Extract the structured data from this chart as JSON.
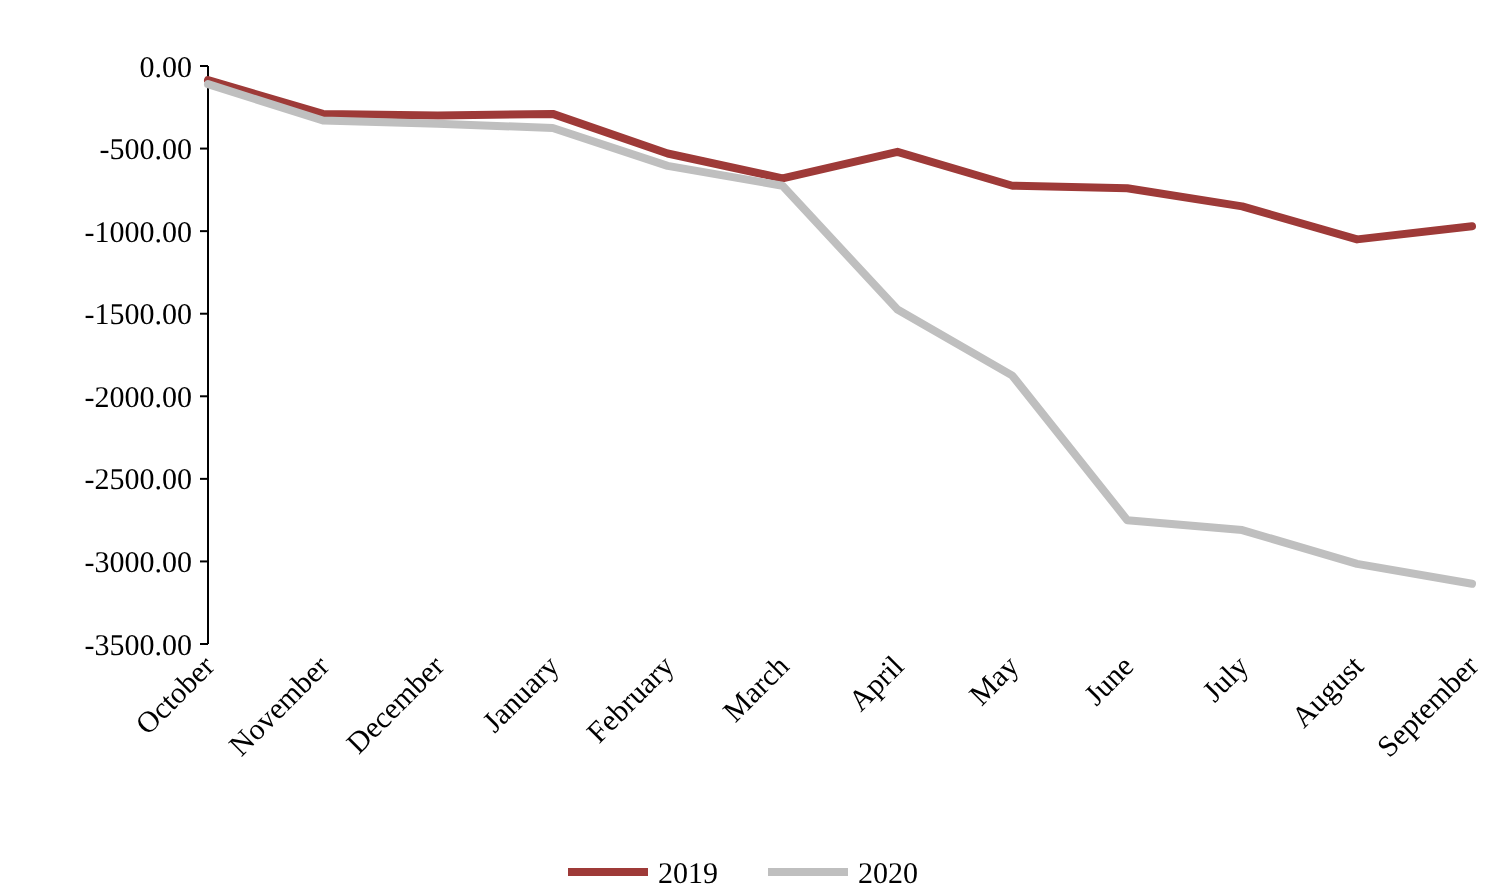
{
  "chart_data": {
    "type": "line",
    "categories": [
      "October",
      "November",
      "December",
      "January",
      "February",
      "March",
      "April",
      "May",
      "June",
      "July",
      "August",
      "September"
    ],
    "series": [
      {
        "name": "2019",
        "color": "#9e3a38",
        "values": [
          -85,
          -290,
          -300,
          -290,
          -530,
          -680,
          -520,
          -725,
          -740,
          -850,
          -1050,
          -970
        ]
      },
      {
        "name": "2020",
        "color": "#bfbfbf",
        "values": [
          -110,
          -330,
          -350,
          -375,
          -605,
          -725,
          -1475,
          -1875,
          -2750,
          -2810,
          -3015,
          -3135
        ]
      }
    ],
    "ylim": [
      -3500,
      0
    ],
    "yticks": [
      {
        "value": 0,
        "label": "0.00"
      },
      {
        "value": -500,
        "label": "-500.00"
      },
      {
        "value": -1000,
        "label": "-1000.00"
      },
      {
        "value": -1500,
        "label": "-1500.00"
      },
      {
        "value": -2000,
        "label": "-2000.00"
      },
      {
        "value": -2500,
        "label": "-2500.00"
      },
      {
        "value": -3000,
        "label": "-3000.00"
      },
      {
        "value": -3500,
        "label": "-3500.00"
      }
    ],
    "grid": false,
    "legend": "bottom",
    "marker": "none",
    "line_style": "solid"
  }
}
